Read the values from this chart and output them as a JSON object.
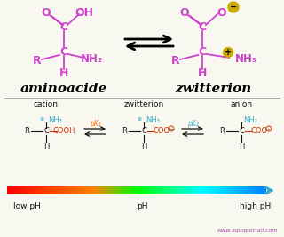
{
  "bg_color": "#f8f8f0",
  "purple": "#cc44cc",
  "red": "#cc3300",
  "cyan": "#33aacc",
  "orange": "#ff6600",
  "gold": "#ccaa00",
  "dark": "#111111",
  "website": "www.aquaportail.com",
  "website_color": "#aa44aa",
  "title1": "aminoacide",
  "title2": "zwitterion"
}
